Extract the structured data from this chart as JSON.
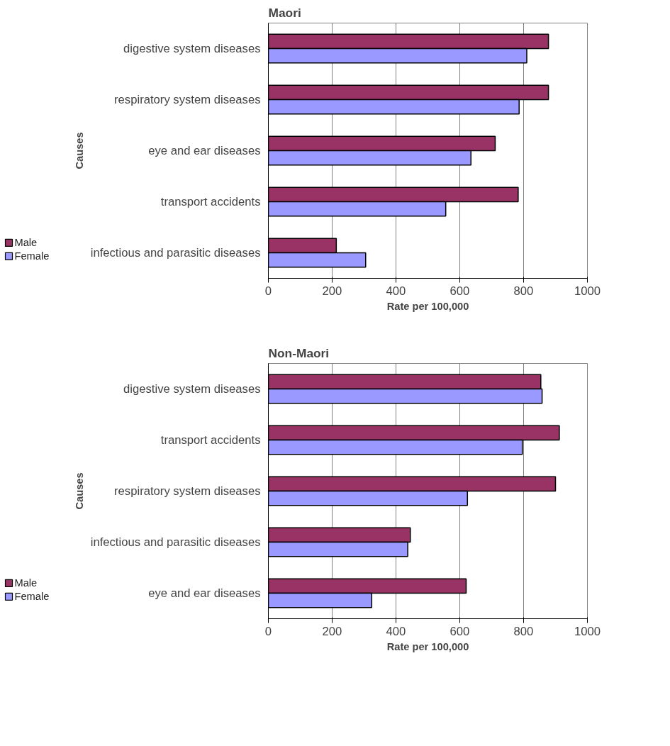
{
  "chart_data": [
    {
      "type": "bar",
      "orientation": "horizontal",
      "title": "Maori",
      "xlabel": "Rate per 100,000",
      "ylabel": "Causes",
      "categories": [
        "digestive system diseases",
        "respiratory system diseases",
        "eye and ear diseases",
        "transport accidents",
        "infectious and parasitic diseases"
      ],
      "series": [
        {
          "name": "Male",
          "color": "#993366",
          "values": [
            878,
            878,
            711,
            783,
            213
          ]
        },
        {
          "name": "Female",
          "color": "#9999ff",
          "values": [
            810,
            786,
            635,
            556,
            305
          ]
        }
      ],
      "xlim": [
        0,
        1000
      ],
      "xticks": [
        0,
        200,
        400,
        600,
        800,
        1000
      ],
      "grid": "x",
      "legend": "bottom left"
    },
    {
      "type": "bar",
      "orientation": "horizontal",
      "title": "Non-Maori",
      "xlabel": "Rate per 100,000",
      "ylabel": "Causes",
      "categories": [
        "digestive system diseases",
        "transport accidents",
        "respiratory system diseases",
        "infectious and parasitic diseases",
        "eye and ear diseases"
      ],
      "series": [
        {
          "name": "Male",
          "color": "#993366",
          "values": [
            854,
            912,
            900,
            445,
            620
          ]
        },
        {
          "name": "Female",
          "color": "#9999ff",
          "values": [
            858,
            796,
            624,
            437,
            324
          ]
        }
      ],
      "xlim": [
        0,
        1000
      ],
      "xticks": [
        0,
        200,
        400,
        600,
        800,
        1000
      ],
      "grid": "x",
      "legend": "bottom left"
    }
  ]
}
